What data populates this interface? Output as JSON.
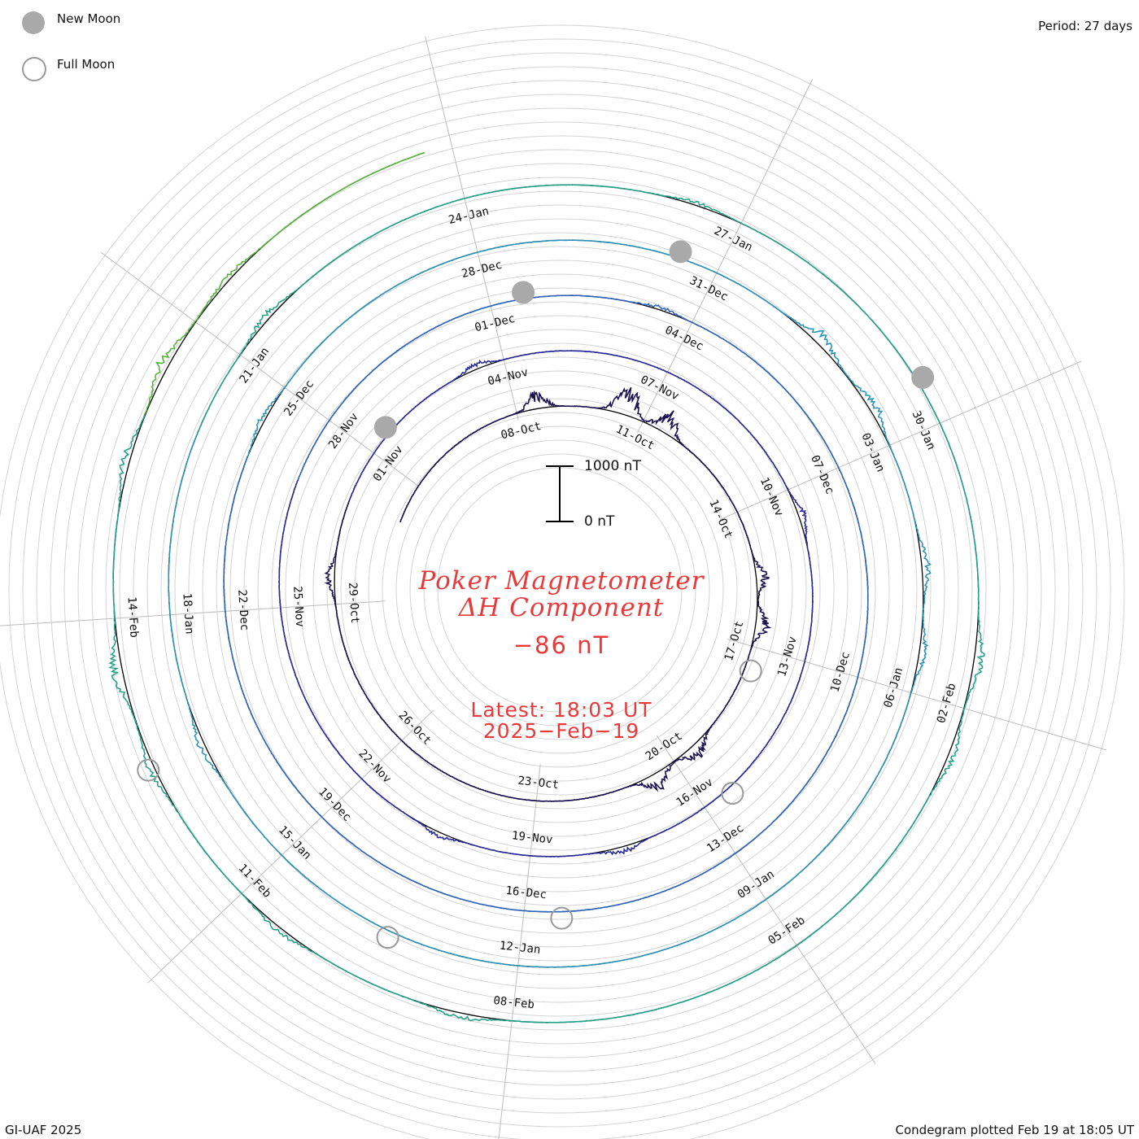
{
  "legend": {
    "new_moon_label": "New Moon",
    "full_moon_label": "Full Moon",
    "new_moon_color": "#a9a9a9",
    "full_moon_color": "#9a9a9a"
  },
  "period_label": "Period: 27 days",
  "credit": "GI-UAF 2025",
  "plotted": "Condegram plotted Feb 19 at 18:05 UT",
  "title_line1": "Poker Magnetometer",
  "title_line2": "ΔH Component",
  "current_value": "−86 nT",
  "latest_line1": "Latest: 18:03 UT",
  "latest_line2": "2025−Feb−19",
  "scale": {
    "top_label": "1000 nT",
    "bottom_label": "0 nT"
  },
  "chart_data": {
    "type": "line",
    "subtype": "condegram spiral (one turn per 27-day period)",
    "title": "Poker Magnetometer ΔH Component",
    "current_value_nT": -86,
    "period_days": 27,
    "start_date": "2024-10-04",
    "end_date": "2025-02-19",
    "scale_nT": [
      0,
      1000
    ],
    "date_labels": [
      "08-Oct",
      "11-Oct",
      "14-Oct",
      "17-Oct",
      "20-Oct",
      "23-Oct",
      "26-Oct",
      "29-Oct",
      "01-Nov",
      "04-Nov",
      "07-Nov",
      "10-Nov",
      "13-Nov",
      "16-Nov",
      "19-Nov",
      "22-Nov",
      "25-Nov",
      "28-Nov",
      "01-Dec",
      "04-Dec",
      "07-Dec",
      "10-Dec",
      "13-Dec",
      "16-Dec",
      "19-Dec",
      "22-Dec",
      "25-Dec",
      "28-Dec",
      "31-Dec",
      "03-Jan",
      "06-Jan",
      "09-Jan",
      "12-Jan",
      "15-Jan",
      "18-Jan",
      "21-Jan",
      "24-Jan",
      "27-Jan",
      "30-Jan",
      "02-Feb",
      "05-Feb",
      "08-Feb",
      "11-Feb",
      "14-Feb"
    ],
    "new_moon_dates": [
      "2024-11-01",
      "2024-12-01",
      "2024-12-30",
      "2025-01-29"
    ],
    "full_moon_dates": [
      "2024-10-17",
      "2024-11-15",
      "2024-12-15",
      "2025-01-13",
      "2025-02-12"
    ],
    "disturbances": [
      {
        "date": "2024-10-08",
        "peak_nT": 600
      },
      {
        "date": "2024-10-10",
        "peak_nT": 1200
      },
      {
        "date": "2024-10-11",
        "peak_nT": 800
      },
      {
        "date": "2024-10-15",
        "peak_nT": 450
      },
      {
        "date": "2024-10-16",
        "peak_nT": 500
      },
      {
        "date": "2024-10-19",
        "peak_nT": 550
      },
      {
        "date": "2024-10-20",
        "peak_nT": 600
      },
      {
        "date": "2024-10-29",
        "peak_nT": 350
      },
      {
        "date": "2024-11-03",
        "peak_nT": 250
      },
      {
        "date": "2024-11-10",
        "peak_nT": 280
      },
      {
        "date": "2024-11-17",
        "peak_nT": 250
      },
      {
        "date": "2024-11-20",
        "peak_nT": 180
      },
      {
        "date": "2024-12-03",
        "peak_nT": 130
      },
      {
        "date": "2024-12-24",
        "peak_nT": 200
      },
      {
        "date": "2025-01-01",
        "peak_nT": 450
      },
      {
        "date": "2025-01-02",
        "peak_nT": 350
      },
      {
        "date": "2025-01-04",
        "peak_nT": 300
      },
      {
        "date": "2025-01-05",
        "peak_nT": 250
      },
      {
        "date": "2025-01-16",
        "peak_nT": 250
      },
      {
        "date": "2025-01-21",
        "peak_nT": 250
      },
      {
        "date": "2025-01-26",
        "peak_nT": 150
      },
      {
        "date": "2025-02-01",
        "peak_nT": 350
      },
      {
        "date": "2025-02-02",
        "peak_nT": 250
      },
      {
        "date": "2025-02-08",
        "peak_nT": 220
      },
      {
        "date": "2025-02-10",
        "peak_nT": 200
      },
      {
        "date": "2025-02-12",
        "peak_nT": 250
      },
      {
        "date": "2025-02-13",
        "peak_nT": 400
      },
      {
        "date": "2025-02-15",
        "peak_nT": 300
      },
      {
        "date": "2025-02-16",
        "peak_nT": 400
      },
      {
        "date": "2025-02-17",
        "peak_nT": 200
      }
    ]
  }
}
